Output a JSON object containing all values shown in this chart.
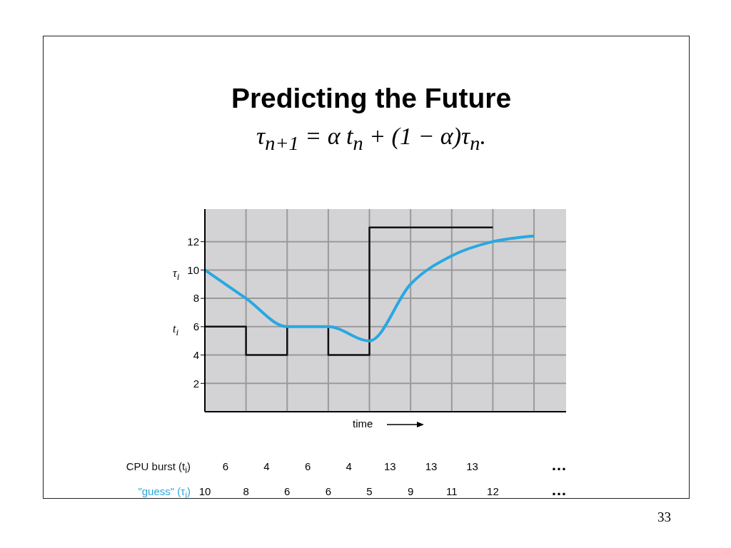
{
  "chart_data": {
    "type": "line",
    "title": "Predicting the Future",
    "subtitle": "τ$_{n+1}$ = α t$_{n}$ + (1 − α)τ$_{n}$.",
    "xlabel": "time",
    "categories": [
      null,
      null,
      null,
      null,
      null,
      null,
      null,
      null,
      null
    ],
    "ylim": [
      0,
      14.3
    ],
    "yticks": [
      2,
      4,
      6,
      8,
      10,
      12
    ],
    "grid": true,
    "tick_labels": "y",
    "series": [
      {
        "name": "CPU burst (t$_{i}$)",
        "type": "step",
        "color": "#111111",
        "values": [
          6,
          4,
          6,
          4,
          13,
          13,
          13,
          13,
          null
        ],
        "value_labels": [
          "6",
          "4",
          "6",
          "4",
          "13",
          "13",
          "13",
          null,
          null
        ]
      },
      {
        "name": "\"guess\" (τ$_{i}$)",
        "color": "#29a8e0",
        "values": [
          10,
          8,
          6,
          6,
          5,
          9,
          11,
          12,
          12.4
        ],
        "value_labels": [
          "10",
          "8",
          "6",
          "6",
          "5",
          "9",
          "11",
          "12",
          null
        ]
      }
    ],
    "annotations": [
      "τ$_{i}$",
      "t$_{i}$",
      "…",
      "…",
      "33"
    ]
  }
}
